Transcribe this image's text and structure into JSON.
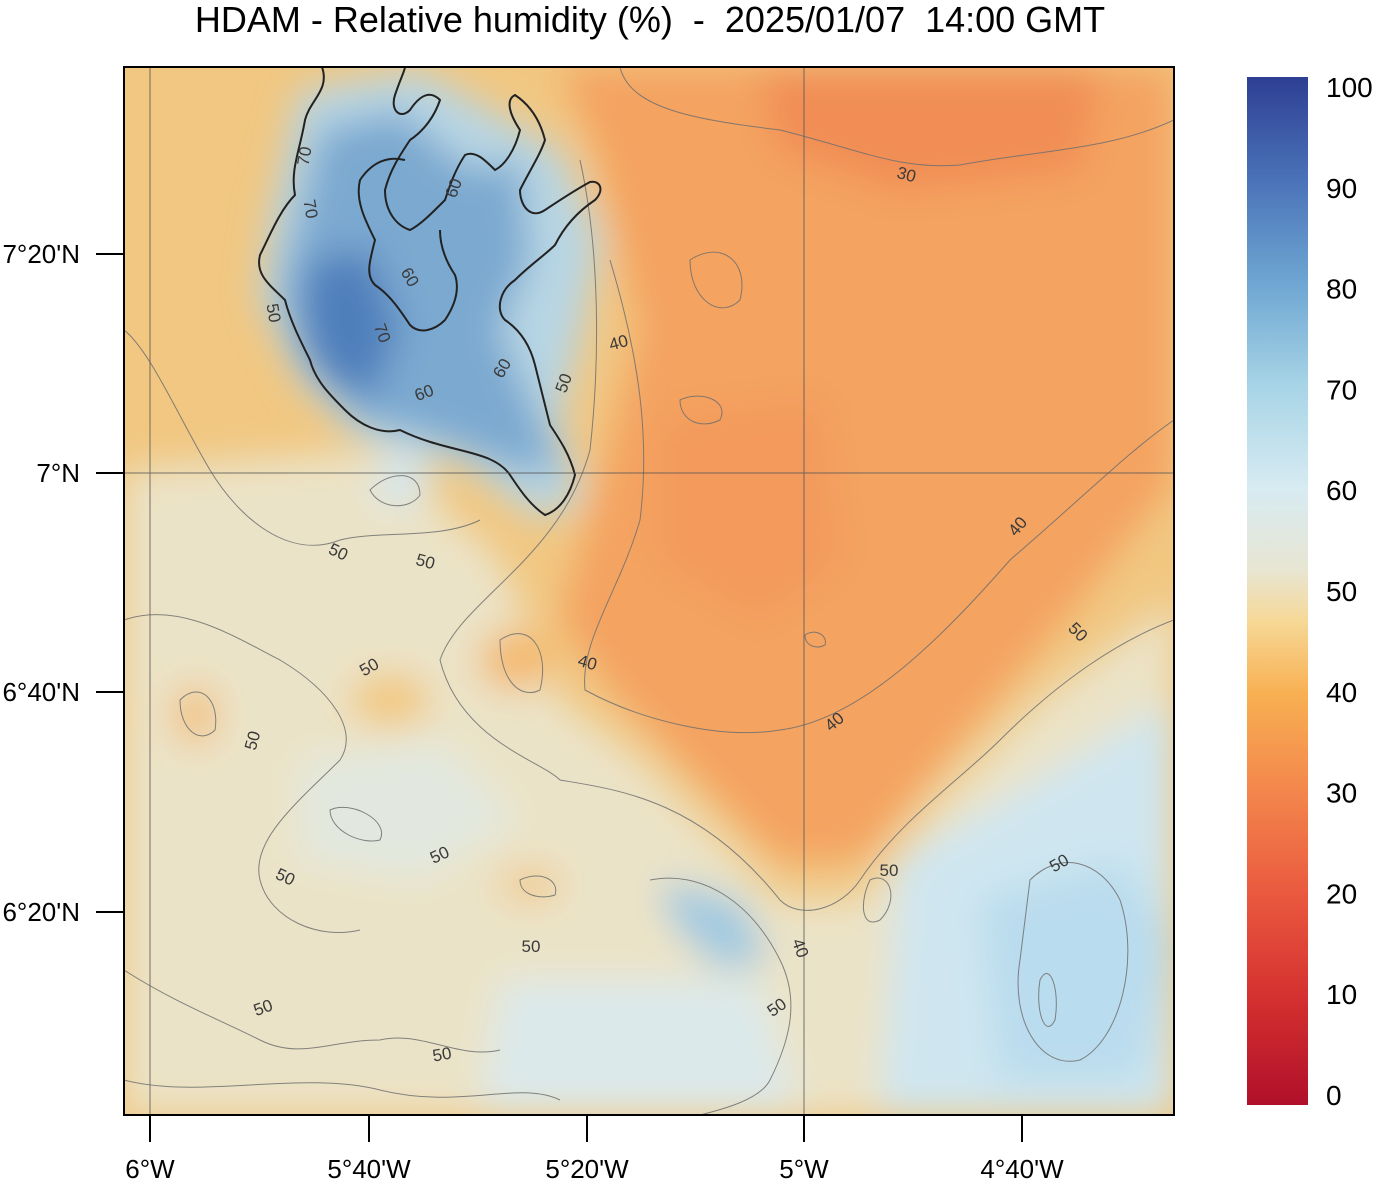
{
  "title": "HDAM - Relative humidity (%)  -  2025/01/07  14:00 GMT",
  "map": {
    "x_ticks": [
      {
        "label": "6°W"
      },
      {
        "label": "5°40'W"
      },
      {
        "label": "5°20'W"
      },
      {
        "label": "5°W"
      },
      {
        "label": "4°40'W"
      }
    ],
    "y_ticks": [
      {
        "label": "7°20'N"
      },
      {
        "label": "7°N"
      },
      {
        "label": "6°40'N"
      },
      {
        "label": "6°20'N"
      }
    ],
    "contour_labels": [
      "30",
      "40",
      "40",
      "40",
      "40",
      "40",
      "50",
      "50",
      "50",
      "50",
      "50",
      "50",
      "50",
      "50",
      "50",
      "50",
      "50",
      "50",
      "50",
      "50",
      "50",
      "60",
      "60",
      "60",
      "60",
      "70",
      "70",
      "70"
    ]
  },
  "colorbar": {
    "range": [
      0,
      100
    ],
    "tick_labels": [
      "0",
      "10",
      "20",
      "30",
      "40",
      "50",
      "60",
      "70",
      "80",
      "90",
      "100"
    ],
    "colors": [
      "#b0102a",
      "#d32f2f",
      "#e9573e",
      "#f3844c",
      "#f8b052",
      "#f6d896",
      "#e8e5d2",
      "#d7ebf2",
      "#a7d4e6",
      "#6ea6d2",
      "#4a72b8",
      "#2e3f93"
    ]
  }
}
